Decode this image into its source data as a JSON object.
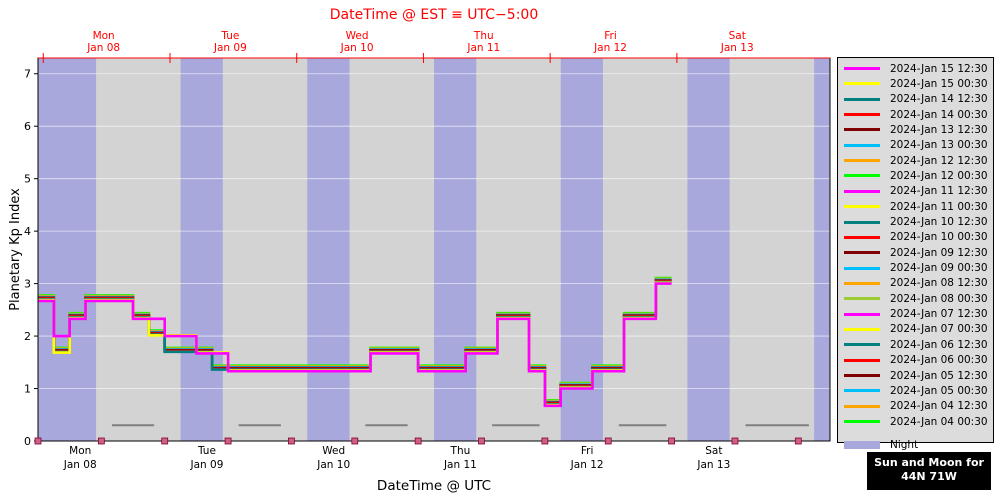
{
  "chart_data": {
    "type": "line",
    "title": "DateTime @ EST ≡ UTC−5:00",
    "xlabel": "DateTime @ UTC",
    "ylabel": "Planetary Kp Index",
    "ylim": [
      0,
      7.3
    ],
    "yticks": [
      0,
      1,
      2,
      3,
      4,
      5,
      6,
      7
    ],
    "xlim_hours": [
      0,
      150
    ],
    "x_origin": "2024-Jan 07 23:00 UTC",
    "top_axis_ticks": [
      {
        "day": "Mon",
        "date": "Jan 08"
      },
      {
        "day": "Tue",
        "date": "Jan 09"
      },
      {
        "day": "Wed",
        "date": "Jan 10"
      },
      {
        "day": "Thu",
        "date": "Jan 11"
      },
      {
        "day": "Fri",
        "date": "Jan 12"
      },
      {
        "day": "Sat",
        "date": "Jan 13"
      }
    ],
    "bottom_axis_ticks": [
      {
        "day": "Mon",
        "date": "Jan 08"
      },
      {
        "day": "Tue",
        "date": "Jan 09"
      },
      {
        "day": "Wed",
        "date": "Jan 10"
      },
      {
        "day": "Thu",
        "date": "Jan 11"
      },
      {
        "day": "Fri",
        "date": "Jan 12"
      },
      {
        "day": "Sat",
        "date": "Jan 13"
      }
    ],
    "grid": true,
    "legend_position": "right",
    "background": {
      "night_color": "#a8a8dc",
      "day_color": "#d3d3d3"
    },
    "night_bands_hours": [
      [
        0,
        11
      ],
      [
        27,
        35
      ],
      [
        51,
        59
      ],
      [
        75,
        83
      ],
      [
        99,
        107
      ],
      [
        123,
        131
      ],
      [
        147,
        150
      ]
    ],
    "moon_segments_hours": [
      [
        14,
        22
      ],
      [
        38,
        46
      ],
      [
        62,
        70
      ],
      [
        86,
        95
      ],
      [
        110,
        119
      ],
      [
        134,
        146
      ]
    ],
    "series": [
      {
        "name": "2024-Jan 15 12:30",
        "color": "#ff00ff",
        "values": [
          2.67,
          2.0,
          2.33,
          2.67,
          2.67,
          2.67,
          2.33,
          2.33,
          2.0,
          2.0,
          1.67,
          1.67,
          1.33,
          1.33,
          1.33,
          1.33,
          1.33,
          1.33,
          1.33,
          1.33,
          1.33,
          1.67,
          1.67,
          1.67,
          1.33,
          1.33,
          1.33,
          1.67,
          1.67,
          2.33,
          2.33,
          1.33,
          0.67,
          1.0,
          1.0,
          1.33,
          1.33,
          2.33,
          2.33,
          3.0
        ]
      },
      {
        "name": "2024-Jan 15 00:30",
        "color": "#ffff00",
        "values": [
          2.67,
          1.67,
          2.33,
          2.67,
          2.67,
          2.67,
          2.33,
          2.0,
          2.0,
          2.0,
          1.67,
          1.67,
          1.33,
          1.33,
          1.33,
          1.33,
          1.33,
          1.33,
          1.33,
          1.33,
          1.33,
          1.67,
          1.67,
          1.67,
          1.33,
          1.33,
          1.33,
          1.67,
          1.67,
          2.33,
          2.33,
          1.33,
          0.67,
          1.0,
          1.0,
          1.33,
          1.33,
          2.33,
          2.33,
          3.0
        ]
      },
      {
        "name": "2024-Jan 14 12:30",
        "color": "#008080",
        "values": [
          2.67,
          1.67,
          2.33,
          2.67,
          2.67,
          2.67,
          2.33,
          2.0,
          1.67,
          1.67,
          1.67,
          1.33,
          1.33,
          1.33,
          1.33,
          1.33,
          1.33,
          1.33,
          1.33,
          1.33,
          1.33,
          1.67,
          1.67,
          1.67,
          1.33,
          1.33,
          1.33,
          1.67,
          1.67,
          2.33,
          2.33,
          1.33,
          0.67,
          1.0,
          1.0,
          1.33,
          1.33,
          2.33,
          2.33,
          3.0
        ]
      },
      {
        "name": "2024-Jan 14 00:30",
        "color": "#ff0000",
        "values": [
          2.67,
          1.67,
          2.33,
          2.67,
          2.67,
          2.67,
          2.33,
          2.0,
          1.67,
          1.67,
          1.67,
          1.33,
          1.33,
          1.33,
          1.33,
          1.33,
          1.33,
          1.33,
          1.33,
          1.33,
          1.33,
          1.67,
          1.67,
          1.67,
          1.33,
          1.33,
          1.33,
          1.67,
          1.67,
          2.33,
          2.33,
          1.33,
          0.67,
          1.0,
          1.0,
          1.33,
          1.33,
          2.33,
          2.33,
          3.0
        ]
      },
      {
        "name": "2024-Jan 13 12:30",
        "color": "#800000",
        "values": [
          2.67,
          1.67,
          2.33,
          2.67,
          2.67,
          2.67,
          2.33,
          2.0,
          1.67,
          1.67,
          1.67,
          1.33,
          1.33,
          1.33,
          1.33,
          1.33,
          1.33,
          1.33,
          1.33,
          1.33,
          1.33,
          1.67,
          1.67,
          1.67,
          1.33,
          1.33,
          1.33,
          1.67,
          1.67,
          2.33,
          2.33,
          1.33,
          0.67,
          1.0,
          1.0,
          1.33,
          1.33,
          2.33,
          2.33,
          3.0
        ]
      },
      {
        "name": "2024-Jan 13 00:30",
        "color": "#00bfff",
        "values": [
          2.67,
          1.67,
          2.33,
          2.67,
          2.67,
          2.67,
          2.33,
          2.0,
          1.67,
          1.67,
          1.67,
          1.33,
          1.33,
          1.33,
          1.33,
          1.33,
          1.33,
          1.33,
          1.33,
          1.33,
          1.33,
          1.67,
          1.67,
          1.67,
          1.33,
          1.33,
          1.33,
          1.67,
          1.67,
          2.33,
          2.33,
          1.33,
          0.67,
          1.0,
          1.0,
          1.33,
          1.33,
          2.33,
          2.33,
          3.0
        ]
      },
      {
        "name": "2024-Jan 12 12:30",
        "color": "#ffa500",
        "values": [
          2.67,
          1.67,
          2.33,
          2.67,
          2.67,
          2.67,
          2.33,
          2.0,
          1.67,
          1.67,
          1.67,
          1.33,
          1.33,
          1.33,
          1.33,
          1.33,
          1.33,
          1.33,
          1.33,
          1.33,
          1.33,
          1.67,
          1.67,
          1.67,
          1.33,
          1.33,
          1.33,
          1.67,
          1.67,
          2.33,
          2.33,
          1.33,
          0.67,
          1.0,
          1.0,
          1.33,
          1.33,
          2.33,
          2.33,
          3.0
        ]
      },
      {
        "name": "2024-Jan 12 00:30",
        "color": "#00ff00",
        "values": [
          2.67,
          1.67,
          2.33,
          2.67,
          2.67,
          2.67,
          2.33,
          2.0,
          1.67,
          1.67,
          1.67,
          1.33,
          1.33,
          1.33,
          1.33,
          1.33,
          1.33,
          1.33,
          1.33,
          1.33,
          1.33,
          1.67,
          1.67,
          1.67,
          1.33,
          1.33,
          1.33,
          1.67,
          1.67,
          2.33,
          2.33,
          1.33,
          0.67,
          1.0,
          1.0,
          1.33,
          1.33,
          2.33,
          2.33,
          3.0
        ]
      },
      {
        "name": "2024-Jan 11 12:30",
        "color": "#ff00ff",
        "values": []
      },
      {
        "name": "2024-Jan 11 00:30",
        "color": "#ffff00",
        "values": []
      },
      {
        "name": "2024-Jan 10 12:30",
        "color": "#008080",
        "values": []
      },
      {
        "name": "2024-Jan 10 00:30",
        "color": "#ff0000",
        "values": []
      },
      {
        "name": "2024-Jan 09 12:30",
        "color": "#800000",
        "values": []
      },
      {
        "name": "2024-Jan 09 00:30",
        "color": "#00bfff",
        "values": []
      },
      {
        "name": "2024-Jan 08 12:30",
        "color": "#ffa500",
        "values": []
      },
      {
        "name": "2024-Jan 08 00:30",
        "color": "#9acd32",
        "values": []
      },
      {
        "name": "2024-Jan 07 12:30",
        "color": "#ff00ff",
        "values": []
      },
      {
        "name": "2024-Jan 07 00:30",
        "color": "#ffff00",
        "values": []
      },
      {
        "name": "2024-Jan 06 12:30",
        "color": "#008080",
        "values": []
      },
      {
        "name": "2024-Jan 06 00:30",
        "color": "#ff0000",
        "values": []
      },
      {
        "name": "2024-Jan 05 12:30",
        "color": "#800000",
        "values": []
      },
      {
        "name": "2024-Jan 05 00:30",
        "color": "#00bfff",
        "values": []
      },
      {
        "name": "2024-Jan 04 12:30",
        "color": "#ffa500",
        "values": []
      },
      {
        "name": "2024-Jan 04 00:30",
        "color": "#00ff00",
        "values": []
      }
    ],
    "extra_legend": [
      {
        "name": "Night",
        "color": "#a8a8dc"
      },
      {
        "name": "Moon",
        "color": "#ffffff"
      }
    ]
  },
  "footer": {
    "line1": "Sun and Moon for",
    "line2": "44N 71W"
  }
}
